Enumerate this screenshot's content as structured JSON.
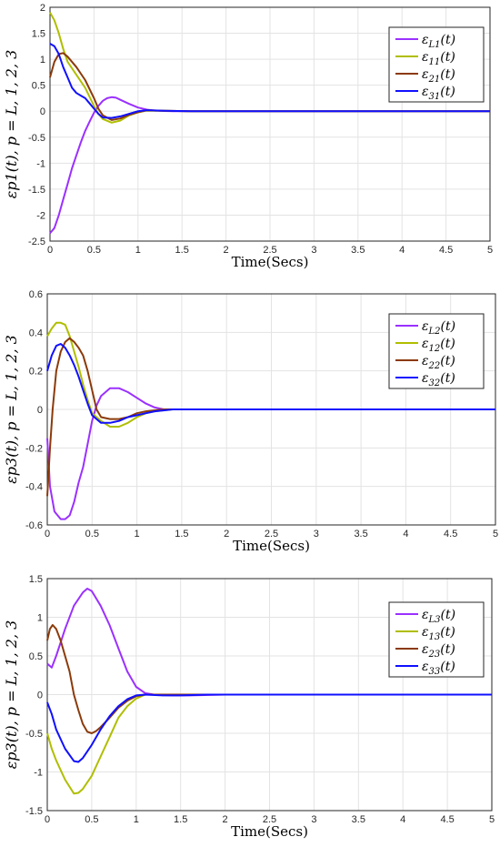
{
  "chart_data": [
    {
      "type": "line",
      "xlabel": "Time(Secs)",
      "ylabel": "εp1(t), p = L, 1, 2, 3",
      "xlim": [
        0,
        5
      ],
      "ylim": [
        -2.5,
        2
      ],
      "xticks": [
        "0",
        "0.5",
        "1",
        "1.5",
        "2",
        "2.5",
        "3",
        "3.5",
        "4",
        "4.5",
        "5"
      ],
      "yticks": [
        "2",
        "1.5",
        "1",
        "0.5",
        "0",
        "-0.5",
        "-1",
        "-1.5",
        "-2",
        "-2.5"
      ],
      "grid": true,
      "legend_position": "top-right",
      "series": [
        {
          "name": "εL1(t)",
          "color": "#9b30ff",
          "points": [
            [
              0,
              -2.35
            ],
            [
              0.05,
              -2.25
            ],
            [
              0.1,
              -2.0
            ],
            [
              0.15,
              -1.7
            ],
            [
              0.2,
              -1.4
            ],
            [
              0.25,
              -1.1
            ],
            [
              0.3,
              -0.85
            ],
            [
              0.35,
              -0.6
            ],
            [
              0.4,
              -0.38
            ],
            [
              0.45,
              -0.2
            ],
            [
              0.5,
              -0.03
            ],
            [
              0.55,
              0.1
            ],
            [
              0.6,
              0.2
            ],
            [
              0.65,
              0.25
            ],
            [
              0.7,
              0.27
            ],
            [
              0.75,
              0.26
            ],
            [
              0.8,
              0.22
            ],
            [
              0.9,
              0.14
            ],
            [
              1.0,
              0.07
            ],
            [
              1.1,
              0.03
            ],
            [
              1.2,
              0.01
            ],
            [
              1.4,
              0.0
            ],
            [
              5,
              0.0
            ]
          ]
        },
        {
          "name": "ε11(t)",
          "color": "#b0be00",
          "points": [
            [
              0,
              1.9
            ],
            [
              0.05,
              1.75
            ],
            [
              0.1,
              1.5
            ],
            [
              0.15,
              1.2
            ],
            [
              0.2,
              0.95
            ],
            [
              0.3,
              0.7
            ],
            [
              0.4,
              0.45
            ],
            [
              0.5,
              0.1
            ],
            [
              0.55,
              -0.05
            ],
            [
              0.6,
              -0.15
            ],
            [
              0.7,
              -0.22
            ],
            [
              0.8,
              -0.18
            ],
            [
              0.9,
              -0.08
            ],
            [
              1.0,
              -0.02
            ],
            [
              1.1,
              0.01
            ],
            [
              1.3,
              0.01
            ],
            [
              1.6,
              0.0
            ],
            [
              5,
              0.0
            ]
          ]
        },
        {
          "name": "ε21(t)",
          "color": "#8b3a0a",
          "points": [
            [
              0,
              0.65
            ],
            [
              0.05,
              0.95
            ],
            [
              0.1,
              1.1
            ],
            [
              0.15,
              1.12
            ],
            [
              0.2,
              1.05
            ],
            [
              0.3,
              0.85
            ],
            [
              0.4,
              0.6
            ],
            [
              0.5,
              0.25
            ],
            [
              0.55,
              0.05
            ],
            [
              0.6,
              -0.08
            ],
            [
              0.7,
              -0.17
            ],
            [
              0.8,
              -0.14
            ],
            [
              0.9,
              -0.07
            ],
            [
              1.0,
              -0.02
            ],
            [
              1.1,
              0.02
            ],
            [
              1.3,
              0.01
            ],
            [
              1.6,
              0.0
            ],
            [
              5,
              0.0
            ]
          ]
        },
        {
          "name": "ε31(t)",
          "color": "#1010ff",
          "points": [
            [
              0,
              1.3
            ],
            [
              0.05,
              1.25
            ],
            [
              0.1,
              1.1
            ],
            [
              0.15,
              0.85
            ],
            [
              0.2,
              0.65
            ],
            [
              0.25,
              0.45
            ],
            [
              0.3,
              0.35
            ],
            [
              0.35,
              0.3
            ],
            [
              0.4,
              0.25
            ],
            [
              0.45,
              0.15
            ],
            [
              0.5,
              0.05
            ],
            [
              0.55,
              -0.05
            ],
            [
              0.6,
              -0.12
            ],
            [
              0.7,
              -0.13
            ],
            [
              0.8,
              -0.1
            ],
            [
              0.9,
              -0.05
            ],
            [
              1.0,
              0.0
            ],
            [
              1.1,
              0.02
            ],
            [
              1.3,
              0.01
            ],
            [
              1.6,
              0.0
            ],
            [
              5,
              0.0
            ]
          ]
        }
      ]
    },
    {
      "type": "line",
      "xlabel": "Time(Secs)",
      "ylabel": "εp3(t), p = L, 1, 2, 3",
      "xlim": [
        0,
        5
      ],
      "ylim": [
        -0.6,
        0.6
      ],
      "xticks": [
        "0",
        "0.5",
        "1",
        "1.5",
        "2",
        "2.5",
        "3",
        "3.5",
        "4",
        "4.5",
        "5"
      ],
      "yticks": [
        "0.6",
        "0.4",
        "0.2",
        "0",
        "-0.2",
        "-0.4",
        "-0.6"
      ],
      "grid": true,
      "legend_position": "top-right",
      "series": [
        {
          "name": "εL2(t)",
          "color": "#9b30ff",
          "points": [
            [
              0,
              -0.15
            ],
            [
              0.03,
              -0.4
            ],
            [
              0.08,
              -0.53
            ],
            [
              0.15,
              -0.57
            ],
            [
              0.2,
              -0.57
            ],
            [
              0.25,
              -0.55
            ],
            [
              0.3,
              -0.48
            ],
            [
              0.35,
              -0.38
            ],
            [
              0.4,
              -0.3
            ],
            [
              0.45,
              -0.18
            ],
            [
              0.5,
              -0.06
            ],
            [
              0.55,
              0.02
            ],
            [
              0.6,
              0.07
            ],
            [
              0.7,
              0.11
            ],
            [
              0.8,
              0.11
            ],
            [
              0.9,
              0.09
            ],
            [
              1.0,
              0.06
            ],
            [
              1.1,
              0.03
            ],
            [
              1.2,
              0.01
            ],
            [
              1.3,
              0.0
            ],
            [
              5,
              0.0
            ]
          ]
        },
        {
          "name": "ε12(t)",
          "color": "#b0be00",
          "points": [
            [
              0,
              0.38
            ],
            [
              0.05,
              0.42
            ],
            [
              0.1,
              0.45
            ],
            [
              0.15,
              0.45
            ],
            [
              0.2,
              0.44
            ],
            [
              0.25,
              0.38
            ],
            [
              0.3,
              0.3
            ],
            [
              0.35,
              0.22
            ],
            [
              0.4,
              0.13
            ],
            [
              0.45,
              0.05
            ],
            [
              0.5,
              -0.02
            ],
            [
              0.6,
              -0.06
            ],
            [
              0.7,
              -0.09
            ],
            [
              0.8,
              -0.09
            ],
            [
              0.9,
              -0.07
            ],
            [
              1.0,
              -0.04
            ],
            [
              1.1,
              -0.02
            ],
            [
              1.2,
              -0.01
            ],
            [
              1.4,
              0.0
            ],
            [
              5,
              0.0
            ]
          ]
        },
        {
          "name": "ε22(t)",
          "color": "#8b3a0a",
          "points": [
            [
              0,
              -0.45
            ],
            [
              0.03,
              -0.2
            ],
            [
              0.06,
              0.0
            ],
            [
              0.1,
              0.2
            ],
            [
              0.15,
              0.3
            ],
            [
              0.2,
              0.35
            ],
            [
              0.25,
              0.37
            ],
            [
              0.3,
              0.35
            ],
            [
              0.35,
              0.32
            ],
            [
              0.4,
              0.28
            ],
            [
              0.45,
              0.2
            ],
            [
              0.5,
              0.1
            ],
            [
              0.55,
              0.0
            ],
            [
              0.6,
              -0.04
            ],
            [
              0.7,
              -0.05
            ],
            [
              0.8,
              -0.05
            ],
            [
              0.9,
              -0.04
            ],
            [
              1.0,
              -0.02
            ],
            [
              1.1,
              -0.01
            ],
            [
              1.3,
              0.0
            ],
            [
              5,
              0.0
            ]
          ]
        },
        {
          "name": "ε32(t)",
          "color": "#1010ff",
          "points": [
            [
              0,
              0.2
            ],
            [
              0.05,
              0.28
            ],
            [
              0.1,
              0.33
            ],
            [
              0.15,
              0.34
            ],
            [
              0.2,
              0.32
            ],
            [
              0.25,
              0.28
            ],
            [
              0.3,
              0.23
            ],
            [
              0.35,
              0.17
            ],
            [
              0.4,
              0.1
            ],
            [
              0.45,
              0.03
            ],
            [
              0.5,
              -0.03
            ],
            [
              0.55,
              -0.05
            ],
            [
              0.6,
              -0.07
            ],
            [
              0.7,
              -0.07
            ],
            [
              0.8,
              -0.06
            ],
            [
              0.9,
              -0.04
            ],
            [
              1.0,
              -0.03
            ],
            [
              1.1,
              -0.02
            ],
            [
              1.2,
              -0.01
            ],
            [
              1.4,
              0.0
            ],
            [
              5,
              0.0
            ]
          ]
        }
      ]
    },
    {
      "type": "line",
      "xlabel": "Time(Secs)",
      "ylabel": "εp3(t), p = L, 1, 2, 3",
      "xlim": [
        0,
        5
      ],
      "ylim": [
        -1.5,
        1.5
      ],
      "xticks": [
        "0",
        "0.5",
        "1",
        "1.5",
        "2",
        "2.5",
        "3",
        "3.5",
        "4",
        "4.5",
        "5"
      ],
      "yticks": [
        "1.5",
        "1",
        "0.5",
        "0",
        "-0.5",
        "-1",
        "-1.5"
      ],
      "grid": true,
      "legend_position": "top-right",
      "series": [
        {
          "name": "εL3(t)",
          "color": "#9b30ff",
          "points": [
            [
              0,
              0.4
            ],
            [
              0.05,
              0.35
            ],
            [
              0.1,
              0.5
            ],
            [
              0.2,
              0.85
            ],
            [
              0.3,
              1.15
            ],
            [
              0.4,
              1.32
            ],
            [
              0.45,
              1.37
            ],
            [
              0.5,
              1.34
            ],
            [
              0.6,
              1.15
            ],
            [
              0.7,
              0.9
            ],
            [
              0.8,
              0.6
            ],
            [
              0.9,
              0.3
            ],
            [
              1.0,
              0.1
            ],
            [
              1.1,
              0.02
            ],
            [
              1.2,
              0.0
            ],
            [
              1.4,
              -0.01
            ],
            [
              1.6,
              -0.01
            ],
            [
              2.0,
              0.0
            ],
            [
              5,
              0.0
            ]
          ]
        },
        {
          "name": "ε13(t)",
          "color": "#b0be00",
          "points": [
            [
              0,
              -0.5
            ],
            [
              0.05,
              -0.7
            ],
            [
              0.1,
              -0.85
            ],
            [
              0.2,
              -1.1
            ],
            [
              0.3,
              -1.28
            ],
            [
              0.35,
              -1.27
            ],
            [
              0.4,
              -1.22
            ],
            [
              0.5,
              -1.05
            ],
            [
              0.6,
              -0.8
            ],
            [
              0.7,
              -0.55
            ],
            [
              0.8,
              -0.3
            ],
            [
              0.9,
              -0.15
            ],
            [
              1.0,
              -0.05
            ],
            [
              1.1,
              0.0
            ],
            [
              1.2,
              0.0
            ],
            [
              5,
              0.0
            ]
          ]
        },
        {
          "name": "ε23(t)",
          "color": "#8b3a0a",
          "points": [
            [
              0,
              0.7
            ],
            [
              0.03,
              0.85
            ],
            [
              0.06,
              0.9
            ],
            [
              0.1,
              0.85
            ],
            [
              0.15,
              0.7
            ],
            [
              0.2,
              0.5
            ],
            [
              0.25,
              0.3
            ],
            [
              0.3,
              0.0
            ],
            [
              0.35,
              -0.2
            ],
            [
              0.4,
              -0.38
            ],
            [
              0.45,
              -0.48
            ],
            [
              0.5,
              -0.5
            ],
            [
              0.55,
              -0.47
            ],
            [
              0.6,
              -0.42
            ],
            [
              0.7,
              -0.3
            ],
            [
              0.8,
              -0.17
            ],
            [
              0.9,
              -0.08
            ],
            [
              1.0,
              -0.02
            ],
            [
              1.1,
              0.0
            ],
            [
              1.3,
              0.0
            ],
            [
              5,
              0.0
            ]
          ]
        },
        {
          "name": "ε33(t)",
          "color": "#1010ff",
          "points": [
            [
              0,
              -0.1
            ],
            [
              0.05,
              -0.25
            ],
            [
              0.1,
              -0.45
            ],
            [
              0.2,
              -0.7
            ],
            [
              0.3,
              -0.86
            ],
            [
              0.35,
              -0.87
            ],
            [
              0.4,
              -0.82
            ],
            [
              0.5,
              -0.65
            ],
            [
              0.6,
              -0.45
            ],
            [
              0.7,
              -0.28
            ],
            [
              0.8,
              -0.15
            ],
            [
              0.9,
              -0.06
            ],
            [
              1.0,
              -0.01
            ],
            [
              1.1,
              0.0
            ],
            [
              1.3,
              -0.01
            ],
            [
              1.5,
              -0.01
            ],
            [
              1.8,
              0.0
            ],
            [
              5,
              0.0
            ]
          ]
        }
      ]
    }
  ]
}
